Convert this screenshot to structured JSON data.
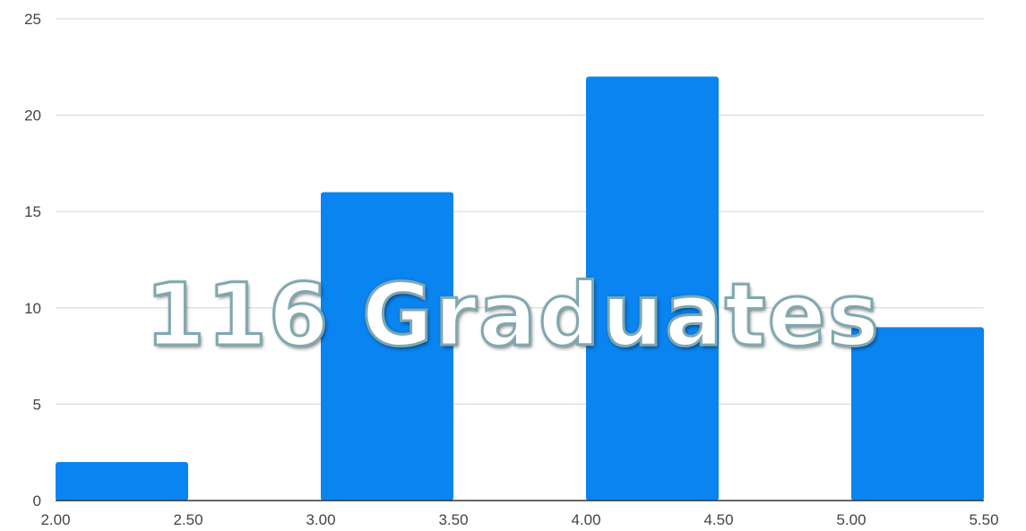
{
  "chart_data": {
    "type": "bar",
    "title": "",
    "xlabel": "",
    "ylabel": "",
    "bins": [
      [
        2.0,
        2.5
      ],
      [
        3.0,
        3.5
      ],
      [
        4.0,
        4.5
      ],
      [
        5.0,
        5.5
      ]
    ],
    "values": [
      2,
      16,
      22,
      9
    ],
    "xlim": [
      2.0,
      5.5
    ],
    "ylim": [
      0,
      25
    ],
    "x_ticks": [
      "2.00",
      "2.50",
      "3.00",
      "3.50",
      "4.00",
      "4.50",
      "5.00",
      "5.50"
    ],
    "y_ticks": [
      "0",
      "5",
      "10",
      "15",
      "20",
      "25"
    ],
    "grid": true,
    "bar_color": "#0a84f0"
  },
  "overlay_text": "116 Graduates"
}
